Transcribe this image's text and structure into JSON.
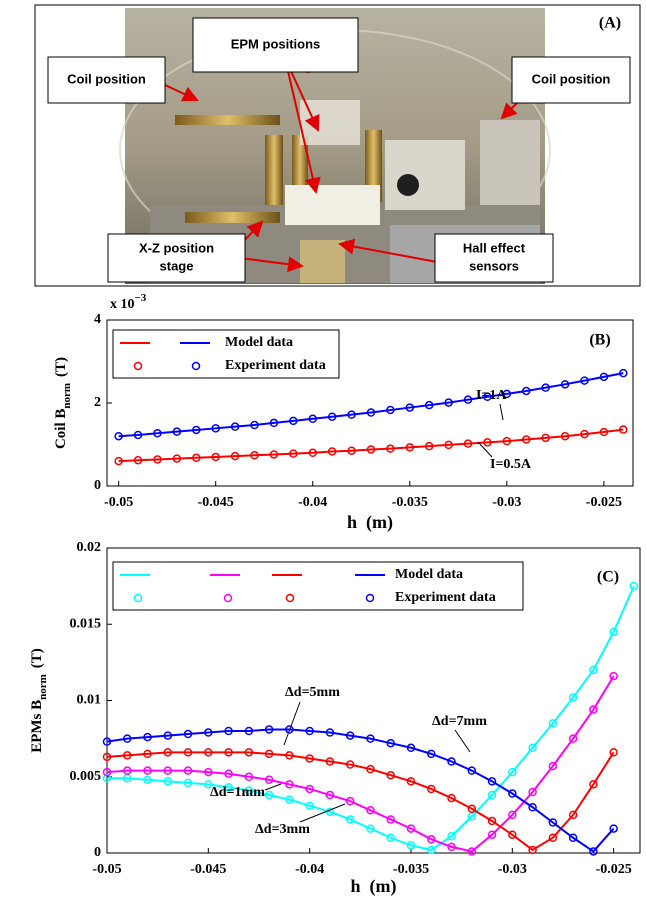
{
  "panel_a": {
    "panel_label": "(A)",
    "labels": [
      {
        "lines": [
          "EPM positions"
        ]
      },
      {
        "lines": [
          "Coil position"
        ]
      },
      {
        "lines": [
          "Coil position"
        ]
      },
      {
        "lines": [
          "X-Z position",
          "stage"
        ]
      },
      {
        "lines": [
          "Hall effect",
          "sensors"
        ]
      }
    ]
  },
  "chart_data": [
    {
      "type": "line",
      "panel_label": "(B)",
      "xlabel": "h  (m)",
      "ylabel": {
        "text": "Coil B",
        "sub": "norm",
        "unit": "(T)"
      },
      "y_multiplier": {
        "base": "x 10",
        "exponent": "−3"
      },
      "xlim": [
        -0.0506,
        -0.0235
      ],
      "xticks": [
        -0.05,
        -0.045,
        -0.04,
        -0.035,
        -0.03,
        -0.025
      ],
      "ylim": [
        0,
        4
      ],
      "yticks": [
        0,
        2,
        4
      ],
      "legend_labels": {
        "model": "Model data",
        "experiment": "Experiment data"
      },
      "series": [
        {
          "annotation": "I=0.5A",
          "color": "#ff0000",
          "x": [
            -0.05,
            -0.049,
            -0.048,
            -0.047,
            -0.046,
            -0.045,
            -0.044,
            -0.043,
            -0.042,
            -0.041,
            -0.04,
            -0.039,
            -0.038,
            -0.037,
            -0.036,
            -0.035,
            -0.034,
            -0.033,
            -0.032,
            -0.031,
            -0.03,
            -0.029,
            -0.028,
            -0.027,
            -0.026,
            -0.025,
            -0.024
          ],
          "values": [
            0.6,
            0.62,
            0.64,
            0.66,
            0.68,
            0.7,
            0.72,
            0.74,
            0.76,
            0.78,
            0.8,
            0.83,
            0.85,
            0.88,
            0.9,
            0.93,
            0.96,
            0.99,
            1.02,
            1.05,
            1.08,
            1.12,
            1.16,
            1.2,
            1.25,
            1.3,
            1.36
          ]
        },
        {
          "annotation": "I=1A",
          "color": "#0000ff",
          "x": [
            -0.05,
            -0.049,
            -0.048,
            -0.047,
            -0.046,
            -0.045,
            -0.044,
            -0.043,
            -0.042,
            -0.041,
            -0.04,
            -0.039,
            -0.038,
            -0.037,
            -0.036,
            -0.035,
            -0.034,
            -0.033,
            -0.032,
            -0.031,
            -0.03,
            -0.029,
            -0.028,
            -0.027,
            -0.026,
            -0.025,
            -0.024
          ],
          "values": [
            1.2,
            1.23,
            1.27,
            1.31,
            1.35,
            1.39,
            1.43,
            1.47,
            1.52,
            1.57,
            1.62,
            1.67,
            1.72,
            1.77,
            1.83,
            1.89,
            1.95,
            2.01,
            2.08,
            2.15,
            2.22,
            2.29,
            2.37,
            2.45,
            2.54,
            2.63,
            2.72
          ]
        }
      ]
    },
    {
      "type": "line",
      "panel_label": "(C)",
      "xlabel": "h  (m)",
      "ylabel": {
        "text": "EPMs B",
        "sub": "norm",
        "unit": "(T)"
      },
      "xlim": [
        -0.05,
        -0.0237
      ],
      "xticks": [
        -0.05,
        -0.045,
        -0.04,
        -0.035,
        -0.03,
        -0.025
      ],
      "ylim": [
        0,
        0.02
      ],
      "yticks": [
        0,
        0.005,
        0.01,
        0.015,
        0.02
      ],
      "legend_labels": {
        "model": "Model data",
        "experiment": "Experiment data"
      },
      "series": [
        {
          "annotation": "Δd=1mm",
          "color": "#00ffff",
          "x": [
            -0.05,
            -0.049,
            -0.048,
            -0.047,
            -0.046,
            -0.045,
            -0.044,
            -0.043,
            -0.042,
            -0.041,
            -0.04,
            -0.039,
            -0.038,
            -0.037,
            -0.036,
            -0.035,
            -0.034,
            -0.033,
            -0.032,
            -0.031,
            -0.03,
            -0.029,
            -0.028,
            -0.027,
            -0.026,
            -0.025,
            -0.024
          ],
          "values": [
            0.0049,
            0.0049,
            0.0048,
            0.0047,
            0.0046,
            0.0045,
            0.0043,
            0.0041,
            0.0038,
            0.0035,
            0.0031,
            0.0027,
            0.0022,
            0.0016,
            0.001,
            0.0005,
            0.0002,
            0.0011,
            0.0024,
            0.0038,
            0.0053,
            0.0069,
            0.0085,
            0.0102,
            0.012,
            0.0145,
            0.0175
          ]
        },
        {
          "annotation": "Δd=3mm",
          "color": "#ff00ff",
          "x": [
            -0.05,
            -0.049,
            -0.048,
            -0.047,
            -0.046,
            -0.045,
            -0.044,
            -0.043,
            -0.042,
            -0.041,
            -0.04,
            -0.039,
            -0.038,
            -0.037,
            -0.036,
            -0.035,
            -0.034,
            -0.033,
            -0.032,
            -0.031,
            -0.03,
            -0.029,
            -0.028,
            -0.027,
            -0.026,
            -0.025
          ],
          "values": [
            0.0053,
            0.0054,
            0.0054,
            0.0054,
            0.0054,
            0.0053,
            0.0052,
            0.005,
            0.0048,
            0.0045,
            0.0042,
            0.0038,
            0.0034,
            0.0028,
            0.0022,
            0.0016,
            0.0009,
            0.0004,
            0.0001,
            0.0012,
            0.0025,
            0.004,
            0.0057,
            0.0075,
            0.0094,
            0.0116
          ]
        },
        {
          "annotation": "Δd=5mm",
          "color": "#ff0000",
          "x": [
            -0.05,
            -0.049,
            -0.048,
            -0.047,
            -0.046,
            -0.045,
            -0.044,
            -0.043,
            -0.042,
            -0.041,
            -0.04,
            -0.039,
            -0.038,
            -0.037,
            -0.036,
            -0.035,
            -0.034,
            -0.033,
            -0.032,
            -0.031,
            -0.03,
            -0.029,
            -0.028,
            -0.027,
            -0.026,
            -0.025
          ],
          "values": [
            0.0063,
            0.0064,
            0.0065,
            0.0066,
            0.0066,
            0.0066,
            0.0066,
            0.0066,
            0.0065,
            0.0064,
            0.0062,
            0.006,
            0.0058,
            0.0055,
            0.0051,
            0.0047,
            0.0042,
            0.0036,
            0.0029,
            0.0021,
            0.0012,
            0.0002,
            0.001,
            0.0025,
            0.0045,
            0.0066
          ]
        },
        {
          "annotation": "Δd=7mm",
          "color": "#0000ff",
          "x": [
            -0.05,
            -0.049,
            -0.048,
            -0.047,
            -0.046,
            -0.045,
            -0.044,
            -0.043,
            -0.042,
            -0.041,
            -0.04,
            -0.039,
            -0.038,
            -0.037,
            -0.036,
            -0.035,
            -0.034,
            -0.033,
            -0.032,
            -0.031,
            -0.03,
            -0.029,
            -0.028,
            -0.027,
            -0.026,
            -0.025
          ],
          "values": [
            0.0073,
            0.0075,
            0.0076,
            0.0077,
            0.0078,
            0.0079,
            0.008,
            0.008,
            0.0081,
            0.0081,
            0.008,
            0.0079,
            0.0077,
            0.0075,
            0.0072,
            0.0069,
            0.0065,
            0.006,
            0.0054,
            0.0047,
            0.0039,
            0.003,
            0.002,
            0.001,
            0.0001,
            0.0016
          ]
        }
      ]
    }
  ]
}
